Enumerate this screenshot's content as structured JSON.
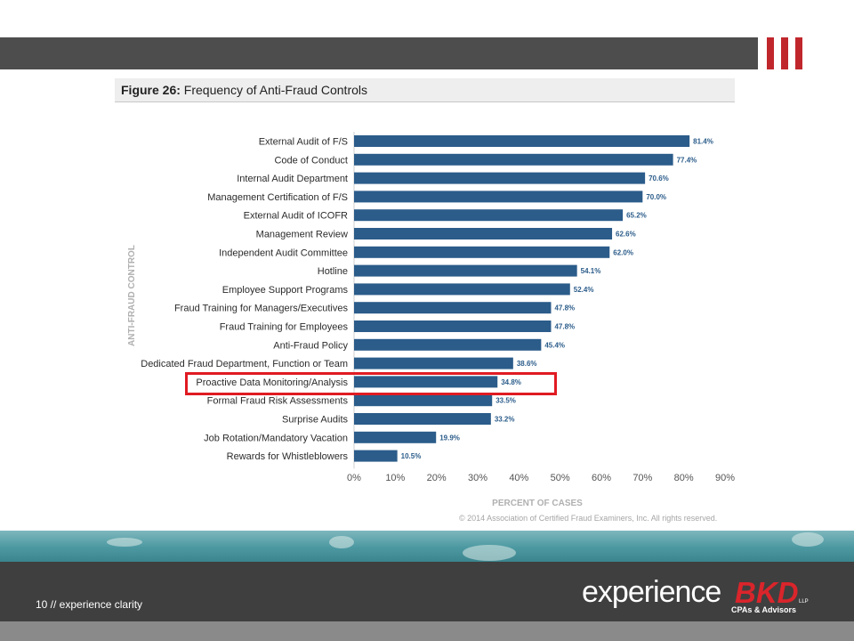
{
  "slide": {
    "number_text": "10 // experience clarity",
    "copyright": "© 2014 Association of Certified Fraud Examiners, Inc. All rights reserved.",
    "logo": {
      "word": "experience",
      "brand": "BKD",
      "suffix": "LLP",
      "tagline": "CPAs & Advisors"
    },
    "colors": {
      "top_bar": "#4d4d4d",
      "brand_red": "#c0272d",
      "bar": "#2b5c8a",
      "highlight": "#e01b22"
    }
  },
  "figure": {
    "label": "Figure 26:",
    "title": "Frequency of Anti-Fraud Controls"
  },
  "chart_data": {
    "type": "bar",
    "orientation": "horizontal",
    "ylabel": "ANTI-FRAUD CONTROL",
    "xlabel": "PERCENT OF CASES",
    "xlim": [
      0,
      90
    ],
    "xticks": [
      "0%",
      "10%",
      "20%",
      "30%",
      "40%",
      "50%",
      "60%",
      "70%",
      "80%",
      "90%"
    ],
    "categories": [
      "External Audit of F/S",
      "Code of Conduct",
      "Internal Audit Department",
      "Management Certification of F/S",
      "External Audit of ICOFR",
      "Management Review",
      "Independent Audit Committee",
      "Hotline",
      "Employee Support Programs",
      "Fraud Training for Managers/Executives",
      "Fraud Training for Employees",
      "Anti-Fraud Policy",
      "Dedicated Fraud Department, Function or Team",
      "Proactive Data Monitoring/Analysis",
      "Formal Fraud Risk Assessments",
      "Surprise Audits",
      "Job Rotation/Mandatory Vacation",
      "Rewards for Whistleblowers"
    ],
    "values": [
      81.4,
      77.4,
      70.6,
      70.0,
      65.2,
      62.6,
      62.0,
      54.1,
      52.4,
      47.8,
      47.8,
      45.4,
      38.6,
      34.8,
      33.5,
      33.2,
      19.9,
      10.5
    ],
    "value_labels": [
      "81.4%",
      "77.4%",
      "70.6%",
      "70.0%",
      "65.2%",
      "62.6%",
      "62.0%",
      "54.1%",
      "52.4%",
      "47.8%",
      "47.8%",
      "45.4%",
      "38.6%",
      "34.8%",
      "33.5%",
      "33.2%",
      "19.9%",
      "10.5%"
    ],
    "highlighted_category": "Proactive Data Monitoring/Analysis",
    "grid": false
  }
}
